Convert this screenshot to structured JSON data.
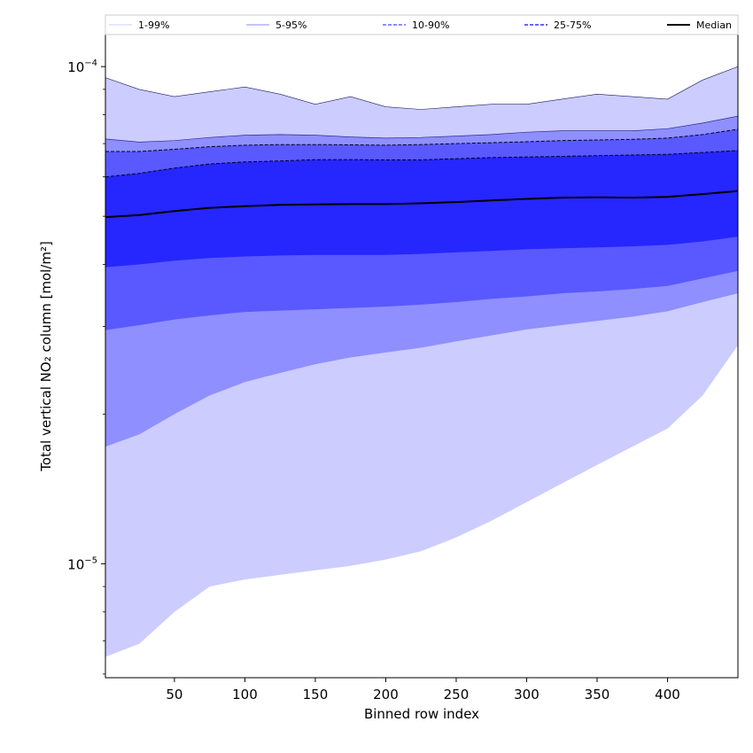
{
  "chart_data": {
    "type": "area",
    "title": "",
    "xlabel": "Binned row index",
    "ylabel": "Total vertical NO₂ column [mol/m²]",
    "xlim": [
      1,
      450
    ],
    "ylim": [
      5.9e-06,
      0.000116
    ],
    "yscale": "log",
    "x_ticks": [
      50,
      100,
      150,
      200,
      250,
      300,
      350,
      400
    ],
    "y_ticks": [
      {
        "value": 0.0001,
        "base": "10",
        "exp": "−4"
      },
      {
        "value": 1e-05,
        "base": "10",
        "exp": "−5"
      }
    ],
    "legend_position": "top",
    "legend": [
      {
        "label": "1-99%",
        "style": "thin-solid",
        "color": "#ccccff"
      },
      {
        "label": "5-95%",
        "style": "thin-solid",
        "color": "#8888ff"
      },
      {
        "label": "10-90%",
        "style": "dashed",
        "color": "#6666ff"
      },
      {
        "label": "25-75%",
        "style": "dashed",
        "color": "#3333ff"
      },
      {
        "label": "Median",
        "style": "thick-solid",
        "color": "#000000"
      }
    ],
    "x": [
      1,
      25,
      50,
      75,
      100,
      125,
      150,
      175,
      200,
      225,
      250,
      275,
      300,
      325,
      350,
      375,
      400,
      425,
      450
    ],
    "series": [
      {
        "name": "1-99%",
        "color": "#ccccff",
        "lower": [
          6.5e-06,
          6.9e-06,
          8e-06,
          9e-06,
          9.3e-06,
          9.5e-06,
          9.7e-06,
          9.9e-06,
          1.02e-05,
          1.06e-05,
          1.13e-05,
          1.22e-05,
          1.33e-05,
          1.45e-05,
          1.58e-05,
          1.72e-05,
          1.87e-05,
          2.18e-05,
          2.75e-05
        ],
        "upper": [
          9.5e-05,
          9e-05,
          8.7e-05,
          8.9e-05,
          9.1e-05,
          8.8e-05,
          8.4e-05,
          8.7e-05,
          8.3e-05,
          8.2e-05,
          8.3e-05,
          8.4e-05,
          8.4e-05,
          8.6e-05,
          8.8e-05,
          8.7e-05,
          8.6e-05,
          9.4e-05,
          0.0001
        ]
      },
      {
        "name": "5-95%",
        "color": "#8f8fff",
        "lower": [
          1.72e-05,
          1.82e-05,
          2e-05,
          2.18e-05,
          2.32e-05,
          2.42e-05,
          2.52e-05,
          2.6e-05,
          2.66e-05,
          2.72e-05,
          2.8e-05,
          2.88e-05,
          2.96e-05,
          3.02e-05,
          3.08e-05,
          3.14e-05,
          3.22e-05,
          3.36e-05,
          3.5e-05
        ],
        "upper": [
          7.15e-05,
          7.05e-05,
          7.1e-05,
          7.2e-05,
          7.28e-05,
          7.3e-05,
          7.28e-05,
          7.22e-05,
          7.18e-05,
          7.2e-05,
          7.25e-05,
          7.3e-05,
          7.38e-05,
          7.43e-05,
          7.43e-05,
          7.43e-05,
          7.5e-05,
          7.7e-05,
          7.95e-05
        ]
      },
      {
        "name": "10-90%",
        "color": "#5959ff",
        "lower": [
          2.95e-05,
          3.02e-05,
          3.1e-05,
          3.16e-05,
          3.21e-05,
          3.23e-05,
          3.25e-05,
          3.27e-05,
          3.29e-05,
          3.32e-05,
          3.36e-05,
          3.41e-05,
          3.45e-05,
          3.5e-05,
          3.53e-05,
          3.57e-05,
          3.62e-05,
          3.75e-05,
          3.88e-05
        ],
        "upper": [
          6.75e-05,
          6.75e-05,
          6.82e-05,
          6.9e-05,
          6.95e-05,
          6.97e-05,
          6.97e-05,
          6.96e-05,
          6.95e-05,
          6.97e-05,
          7e-05,
          7.03e-05,
          7.06e-05,
          7.1e-05,
          7.12e-05,
          7.14e-05,
          7.18e-05,
          7.3e-05,
          7.48e-05
        ]
      },
      {
        "name": "25-75%",
        "color": "#2626ff",
        "lower": [
          3.95e-05,
          4e-05,
          4.07e-05,
          4.12e-05,
          4.15e-05,
          4.17e-05,
          4.18e-05,
          4.18e-05,
          4.18e-05,
          4.2e-05,
          4.23e-05,
          4.26e-05,
          4.29e-05,
          4.31e-05,
          4.33e-05,
          4.35e-05,
          4.38e-05,
          4.45e-05,
          4.55e-05
        ],
        "upper": [
          6e-05,
          6.1e-05,
          6.25e-05,
          6.37e-05,
          6.43e-05,
          6.46e-05,
          6.5e-05,
          6.5e-05,
          6.49e-05,
          6.49e-05,
          6.53e-05,
          6.56e-05,
          6.58e-05,
          6.6e-05,
          6.62e-05,
          6.64e-05,
          6.66e-05,
          6.72e-05,
          6.78e-05
        ]
      }
    ],
    "median": [
      4.98e-05,
      5.03e-05,
      5.12e-05,
      5.2e-05,
      5.24e-05,
      5.27e-05,
      5.28e-05,
      5.29e-05,
      5.29e-05,
      5.31e-05,
      5.34e-05,
      5.38e-05,
      5.42e-05,
      5.45e-05,
      5.46e-05,
      5.45e-05,
      5.47e-05,
      5.54e-05,
      5.62e-05
    ]
  }
}
